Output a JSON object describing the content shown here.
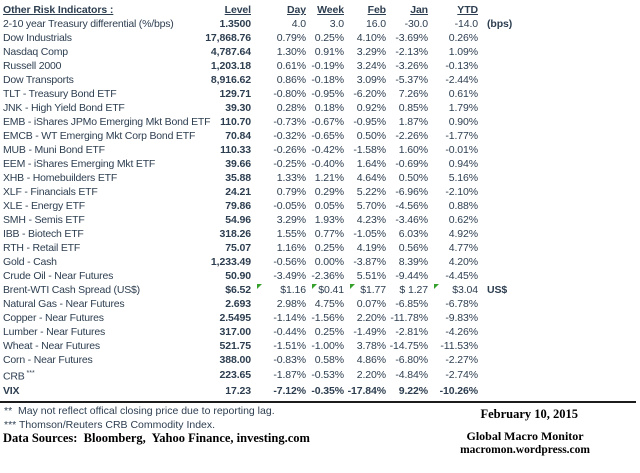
{
  "header": {
    "title": "Other Risk Indicators :",
    "columns": [
      "Level",
      "Day",
      "Week",
      "Feb",
      "Jan",
      "YTD"
    ]
  },
  "rows": [
    {
      "label": "2-10 year Treasury differential (%/bps)",
      "level": "1.3500",
      "day": "4.0",
      "week": "3.0",
      "feb": "16.0",
      "jan": "-30.0",
      "ytd": "-14.0",
      "unit": "(bps)"
    },
    {
      "label": "Dow Industrials",
      "level": "17,868.76",
      "day": "0.79%",
      "week": "0.25%",
      "feb": "4.10%",
      "jan": "-3.69%",
      "ytd": "0.26%"
    },
    {
      "label": "Nasdaq Comp",
      "level": "4,787.64",
      "day": "1.30%",
      "week": "0.91%",
      "feb": "3.29%",
      "jan": "-2.13%",
      "ytd": "1.09%"
    },
    {
      "label": "Russell 2000",
      "level": "1,203.18",
      "day": "0.61%",
      "week": "-0.19%",
      "feb": "3.24%",
      "jan": "-3.26%",
      "ytd": "-0.13%"
    },
    {
      "label": "Dow Transports",
      "level": "8,916.62",
      "day": "0.86%",
      "week": "-0.18%",
      "feb": "3.09%",
      "jan": "-5.37%",
      "ytd": "-2.44%"
    },
    {
      "label": "TLT - Treasury Bond ETF",
      "level": "129.71",
      "day": "-0.80%",
      "week": "-0.95%",
      "feb": "-6.20%",
      "jan": "7.26%",
      "ytd": "0.61%"
    },
    {
      "label": "JNK - High Yield Bond ETF",
      "level": "39.30",
      "day": "0.28%",
      "week": "0.18%",
      "feb": "0.92%",
      "jan": "0.85%",
      "ytd": "1.79%"
    },
    {
      "label": "EMB - iShares JPMo Emerging Mkt Bond ETF",
      "level": "110.70",
      "day": "-0.73%",
      "week": "-0.67%",
      "feb": "-0.95%",
      "jan": "1.87%",
      "ytd": "0.90%"
    },
    {
      "label": "EMCB - WT Emerging Mkt Corp Bond ETF",
      "level": "70.84",
      "day": "-0.32%",
      "week": "-0.65%",
      "feb": "0.50%",
      "jan": "-2.26%",
      "ytd": "-1.77%"
    },
    {
      "label": "MUB - Muni Bond ETF",
      "level": "110.33",
      "day": "-0.26%",
      "week": "-0.42%",
      "feb": "-1.58%",
      "jan": "1.60%",
      "ytd": "-0.01%"
    },
    {
      "label": "EEM - iShares Emerging Mkt ETF",
      "level": "39.66",
      "day": "-0.25%",
      "week": "-0.40%",
      "feb": "1.64%",
      "jan": "-0.69%",
      "ytd": "0.94%"
    },
    {
      "label": "XHB - Homebuilders ETF",
      "level": "35.88",
      "day": "1.33%",
      "week": "1.21%",
      "feb": "4.64%",
      "jan": "0.50%",
      "ytd": "5.16%"
    },
    {
      "label": "XLF - Financials ETF",
      "level": "24.21",
      "day": "0.79%",
      "week": "0.29%",
      "feb": "5.22%",
      "jan": "-6.96%",
      "ytd": "-2.10%"
    },
    {
      "label": "XLE - Energy ETF",
      "level": "79.86",
      "day": "-0.05%",
      "week": "0.05%",
      "feb": "5.70%",
      "jan": "-4.56%",
      "ytd": "0.88%"
    },
    {
      "label": "SMH - Semis ETF",
      "level": "54.96",
      "day": "3.29%",
      "week": "1.93%",
      "feb": "4.23%",
      "jan": "-3.46%",
      "ytd": "0.62%"
    },
    {
      "label": "IBB - Biotech ETF",
      "level": "318.26",
      "day": "1.55%",
      "week": "0.77%",
      "feb": "-1.05%",
      "jan": "6.03%",
      "ytd": "4.92%"
    },
    {
      "label": "RTH - Retail ETF",
      "level": "75.07",
      "day": "1.16%",
      "week": "0.25%",
      "feb": "4.19%",
      "jan": "0.56%",
      "ytd": "4.77%"
    },
    {
      "label": "Gold - Cash",
      "level": "1,233.49",
      "day": "-0.56%",
      "week": "0.00%",
      "feb": "-3.87%",
      "jan": "8.39%",
      "ytd": "4.20%"
    },
    {
      "label": "Crude Oil - Near Futures",
      "level": "50.90",
      "day": "-3.49%",
      "week": "-2.36%",
      "feb": "5.51%",
      "jan": "-9.44%",
      "ytd": "-4.45%"
    },
    {
      "label": "Brent-WTI Cash Spread (US$)",
      "level": "$6.52",
      "day": "$1.16",
      "week": "$0.41",
      "feb": "$1.77",
      "jan": "$ 1.27",
      "ytd": "$3.04",
      "unit": "US$",
      "flags": [
        "day",
        "week",
        "feb",
        "ytd"
      ]
    },
    {
      "label": "Natural Gas - Near Futures",
      "level": "2.693",
      "day": "2.98%",
      "week": "4.75%",
      "feb": "0.07%",
      "jan": "-6.85%",
      "ytd": "-6.78%"
    },
    {
      "label": "Copper - Near Futures",
      "level": "2.5495",
      "day": "-1.14%",
      "week": "-1.56%",
      "feb": "2.20%",
      "jan": "-11.78%",
      "ytd": "-9.83%"
    },
    {
      "label": "Lumber - Near Futures",
      "level": "317.00",
      "day": "-0.44%",
      "week": "0.25%",
      "feb": "-1.49%",
      "jan": "-2.81%",
      "ytd": "-4.26%"
    },
    {
      "label": "Wheat - Near Futures",
      "level": "521.75",
      "day": "-1.51%",
      "week": "-1.00%",
      "feb": "3.78%",
      "jan": "-14.75%",
      "ytd": "-11.53%"
    },
    {
      "label": "Corn - Near Futures",
      "level": "388.00",
      "day": "-0.83%",
      "week": "0.58%",
      "feb": "4.86%",
      "jan": "-6.80%",
      "ytd": "-2.27%"
    },
    {
      "label": "CRB",
      "label_sup": "***",
      "level": "223.65",
      "day": "-1.87%",
      "week": "-0.53%",
      "feb": "2.20%",
      "jan": "-4.84%",
      "ytd": "-2.74%"
    },
    {
      "label": "VIX",
      "bold": true,
      "level": "17.23",
      "day": "-7.12%",
      "week": "-0.35%",
      "feb": "-17.84%",
      "jan": "9.22%",
      "ytd": "-10.26%"
    }
  ],
  "footer": {
    "footnote1": "**  May not reflect offical closing price due to reporting lag.",
    "footnote2": "*** Thomson/Reuters CRB Commodity Index.",
    "data_sources": "Data Sources:  Bloomberg,  Yahoo Finance, investing.com",
    "date": "February 10, 2015",
    "brand_name": "Global Macro Monitor",
    "brand_url": "macromon.wordpress.com"
  },
  "colors": {
    "text": "#2d3e50",
    "flag_green": "#35a02c",
    "rule": "#1c1c1c"
  }
}
